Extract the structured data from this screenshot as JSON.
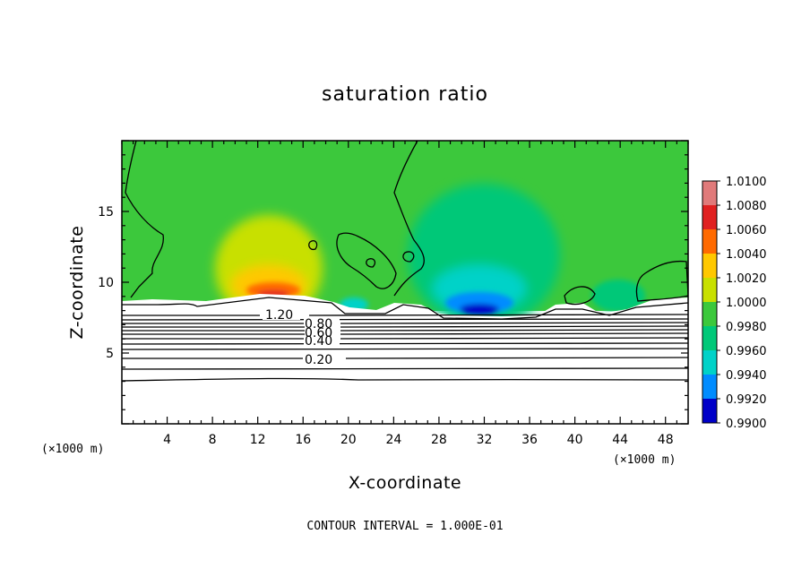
{
  "chart_data": {
    "type": "heatmap",
    "title": "saturation ratio",
    "xlabel": "X-coordinate",
    "ylabel": "Z-coordinate",
    "x_unit": "(×1000 m)",
    "xlim": [
      0,
      50
    ],
    "ylim": [
      0,
      20
    ],
    "x_ticks": [
      "4",
      "8",
      "12",
      "16",
      "20",
      "24",
      "28",
      "32",
      "36",
      "40",
      "44",
      "48"
    ],
    "y_ticks": [
      "5",
      "10",
      "15"
    ],
    "colorbar": {
      "labels": [
        "1.0100",
        "1.0080",
        "1.0060",
        "1.0040",
        "1.0020",
        "1.0000",
        "0.9980",
        "0.9960",
        "0.9940",
        "0.9920",
        "0.9900"
      ],
      "colors": [
        "#e07a7a",
        "#e02020",
        "#ff6a00",
        "#ffc800",
        "#c8e000",
        "#3cc83c",
        "#00c878",
        "#00d2c8",
        "#008cff",
        "#0000c8",
        "#5a00a0"
      ]
    },
    "contour_labels": [
      "1.20",
      "0.80",
      "0.60",
      "0.40",
      "0.20"
    ],
    "note": "CONTOUR INTERVAL = 1.000E-01"
  }
}
